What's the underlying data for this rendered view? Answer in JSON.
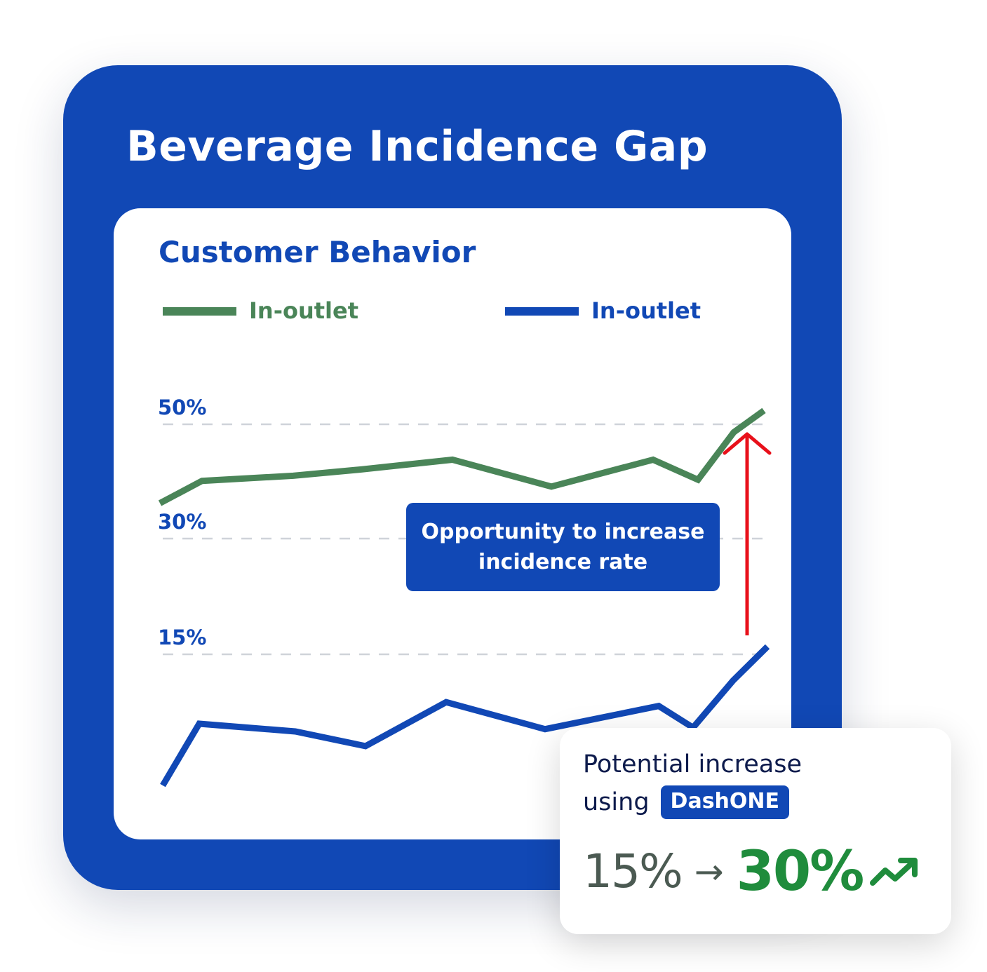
{
  "title": "Beverage Incidence Gap",
  "chart_data": {
    "type": "line",
    "title": "Customer Behavior",
    "xlabel": "",
    "ylabel": "",
    "legend_position": "top",
    "grid": true,
    "y_ticks": [
      {
        "value": 50,
        "label": "50%"
      },
      {
        "value": 30,
        "label": "30%"
      },
      {
        "value": 15,
        "label": "15%"
      }
    ],
    "series": [
      {
        "name": "In-outlet",
        "color": "#4a8558",
        "values": [
          36.2,
          40.1,
          41.0,
          42.1,
          43.8,
          39.1,
          43.8,
          40.3,
          48.6,
          52.4
        ]
      },
      {
        "name": "In-outlet",
        "color": "#1148b5",
        "values": [
          -2.0,
          6.0,
          5.0,
          3.1,
          8.8,
          5.3,
          8.3,
          5.5,
          11.6,
          16.0
        ]
      }
    ],
    "annotation": "Opportunity to increase incidence rate",
    "arrow_color": "#e8101a"
  },
  "result_card": {
    "line1": "Potential increase",
    "line2_prefix": "using",
    "brand": "DashONE",
    "from_value": "15%",
    "arrow": "→",
    "to_value": "30%",
    "trend_icon": "trending-up-icon"
  }
}
